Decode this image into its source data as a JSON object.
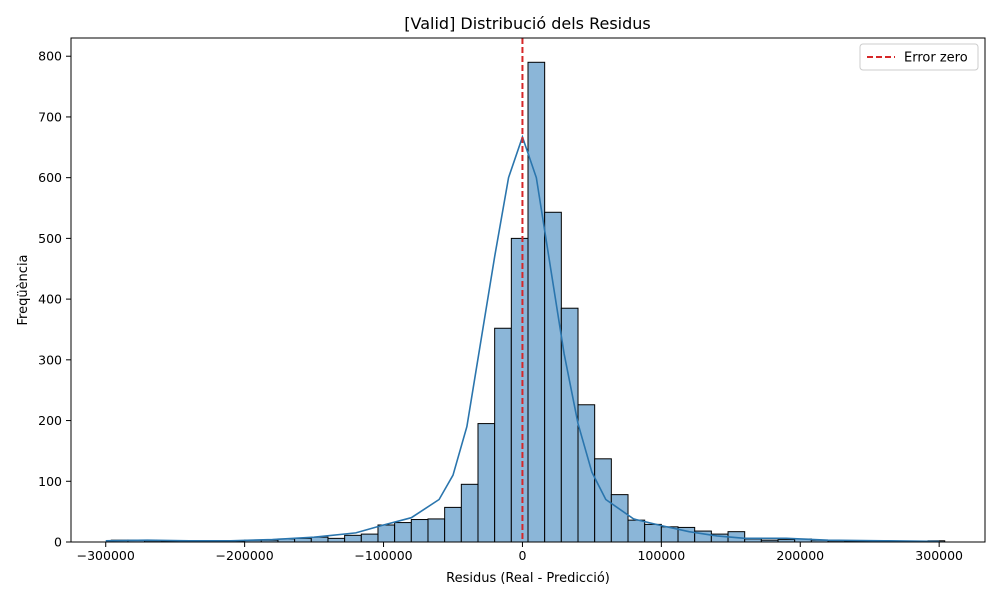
{
  "chart_data": {
    "type": "bar",
    "title": "[Valid] Distribució dels Residus",
    "xlabel": "Residus (Real - Predicció)",
    "ylabel": "Freqüència",
    "xlim": [
      -325000,
      333000
    ],
    "ylim": [
      0,
      830
    ],
    "x_ticks": [
      -300000,
      -200000,
      -100000,
      0,
      100000,
      200000,
      300000
    ],
    "x_tick_labels": [
      "−300000",
      "−200000",
      "−100000",
      "0",
      "100000",
      "200000",
      "300000"
    ],
    "y_ticks": [
      0,
      100,
      200,
      300,
      400,
      500,
      600,
      700,
      800
    ],
    "y_tick_labels": [
      "0",
      "100",
      "200",
      "300",
      "400",
      "500",
      "600",
      "700",
      "800"
    ],
    "bin_start": -296000,
    "bin_width": 12000,
    "values": [
      3,
      3,
      2,
      1,
      1,
      1,
      1,
      1,
      3,
      3,
      5,
      6,
      8,
      6,
      11,
      13,
      28,
      32,
      37,
      38,
      57,
      95,
      195,
      352,
      500,
      790,
      543,
      385,
      226,
      137,
      78,
      36,
      29,
      25,
      24,
      18,
      13,
      17,
      5,
      3,
      4,
      5,
      3,
      2,
      1,
      1,
      1,
      1,
      1,
      2
    ],
    "kde": {
      "x": [
        -300000,
        -270000,
        -240000,
        -210000,
        -180000,
        -150000,
        -120000,
        -100000,
        -80000,
        -60000,
        -50000,
        -40000,
        -30000,
        -20000,
        -10000,
        0,
        10000,
        20000,
        30000,
        40000,
        50000,
        60000,
        80000,
        100000,
        120000,
        140000,
        160000,
        190000,
        220000,
        260000,
        300000
      ],
      "y": [
        2,
        3,
        2,
        2,
        4,
        8,
        15,
        28,
        40,
        70,
        110,
        190,
        330,
        470,
        600,
        667,
        600,
        455,
        310,
        195,
        115,
        70,
        38,
        27,
        17,
        10,
        6,
        6,
        3,
        2,
        1
      ]
    },
    "vline": {
      "x": 0,
      "label": "Error zero",
      "color": "#d62728",
      "style": "dashed"
    },
    "bar_color": "#8bb6d8",
    "bar_edge_color": "#000000",
    "kde_color": "#2a75ad",
    "grid": false,
    "legend_position": "upper right"
  }
}
